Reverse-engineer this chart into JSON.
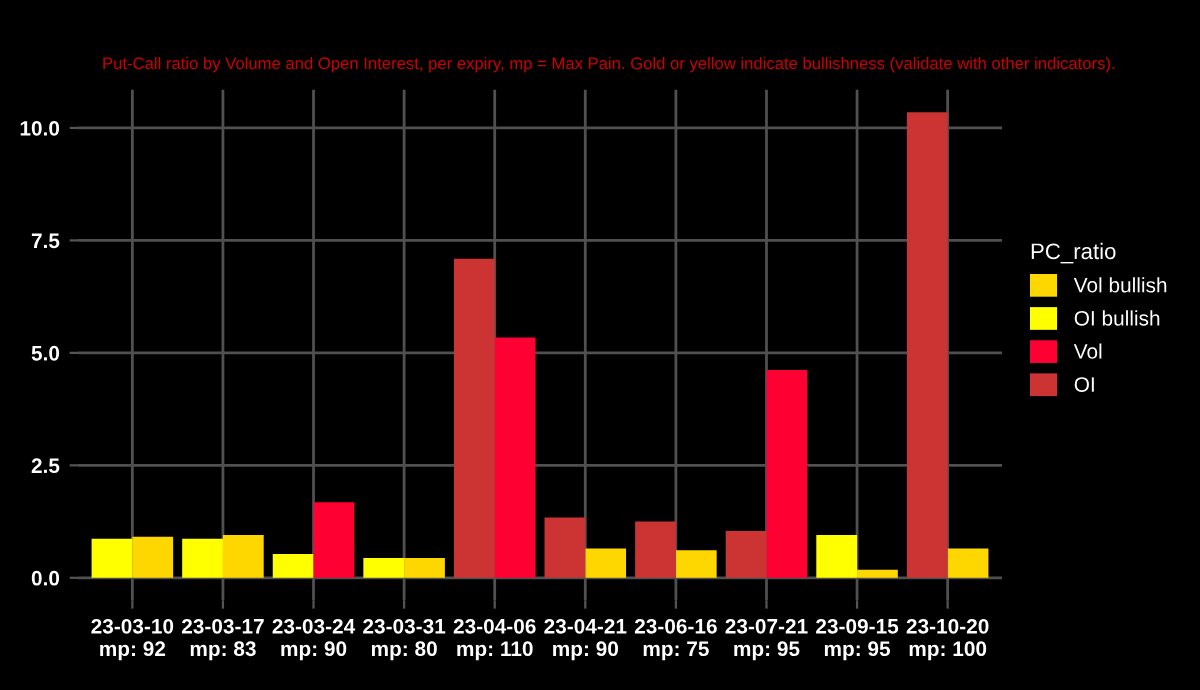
{
  "chart_data": {
    "type": "bar",
    "subtitle": "Put-Call ratio by Volume and Open Interest, per expiry, mp = Max Pain. Gold or yellow indicate bullishness (validate with other indicators).",
    "legend_title": "PC_ratio",
    "categories": [
      "23-03-10\nmp: 92",
      "23-03-17\nmp: 83",
      "23-03-24\nmp: 90",
      "23-03-31\nmp: 80",
      "23-04-06\nmp: 110",
      "23-04-21\nmp: 90",
      "23-06-16\nmp: 75",
      "23-07-21\nmp: 95",
      "23-09-15\nmp: 95",
      "23-10-20\nmp: 100"
    ],
    "series": [
      {
        "name": "Vol bullish",
        "color": "#ffd700",
        "values": [
          0.91,
          0.95,
          null,
          0.44,
          null,
          0.65,
          0.61,
          null,
          0.18,
          0.65
        ]
      },
      {
        "name": "OI bullish",
        "color": "#ffff00",
        "values": [
          0.87,
          0.87,
          0.53,
          0.44,
          null,
          null,
          null,
          null,
          0.95,
          null
        ]
      },
      {
        "name": "Vol",
        "color": "#ff0033",
        "values": [
          null,
          null,
          1.68,
          null,
          5.34,
          null,
          null,
          4.62,
          null,
          null
        ]
      },
      {
        "name": "OI",
        "color": "#cc3333",
        "values": [
          null,
          null,
          null,
          null,
          7.09,
          1.34,
          1.25,
          1.04,
          null,
          10.35
        ]
      }
    ],
    "ylim": [
      -0.5,
      10.85
    ],
    "yticks": [
      {
        "value": 0,
        "label": "0.0"
      },
      {
        "value": 2.5,
        "label": "2.5"
      },
      {
        "value": 5,
        "label": "5.0"
      },
      {
        "value": 7.5,
        "label": "7.5"
      },
      {
        "value": 10,
        "label": "10.0"
      }
    ],
    "grid": true,
    "legend": "right"
  }
}
